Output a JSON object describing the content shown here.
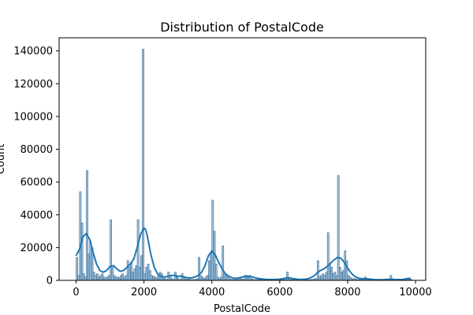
{
  "chart_data": {
    "type": "bar",
    "title": "Distribution of PostalCode",
    "xlabel": "PostalCode",
    "ylabel": "Count",
    "xlim": [
      -500,
      10300
    ],
    "ylim": [
      0,
      148000
    ],
    "x_ticks": [
      0,
      2000,
      4000,
      6000,
      8000,
      10000
    ],
    "x_tick_labels": [
      "0",
      "2000",
      "4000",
      "6000",
      "8000",
      "10000"
    ],
    "y_ticks": [
      0,
      20000,
      40000,
      60000,
      80000,
      100000,
      120000,
      140000
    ],
    "y_tick_labels": [
      "0",
      "20000",
      "40000",
      "60000",
      "80000",
      "100000",
      "120000",
      "140000"
    ],
    "grid": false,
    "legend": "none",
    "bin_width": 50,
    "bar_color": "#5b9bc8",
    "bar_edge_color": "#1f4e79",
    "kde_color": "#1f77b4",
    "histogram": [
      [
        0,
        14000
      ],
      [
        50,
        3000
      ],
      [
        100,
        54000
      ],
      [
        150,
        35000
      ],
      [
        200,
        4000
      ],
      [
        250,
        2000
      ],
      [
        300,
        67000
      ],
      [
        350,
        16000
      ],
      [
        400,
        24000
      ],
      [
        450,
        20000
      ],
      [
        500,
        5000
      ],
      [
        550,
        3000
      ],
      [
        600,
        4000
      ],
      [
        650,
        2000
      ],
      [
        700,
        3000
      ],
      [
        750,
        4000
      ],
      [
        800,
        2000
      ],
      [
        850,
        1500
      ],
      [
        900,
        2000
      ],
      [
        950,
        3000
      ],
      [
        1000,
        37000
      ],
      [
        1050,
        8000
      ],
      [
        1100,
        3000
      ],
      [
        1150,
        2000
      ],
      [
        1200,
        2000
      ],
      [
        1250,
        1500
      ],
      [
        1300,
        3000
      ],
      [
        1350,
        4000
      ],
      [
        1400,
        2000
      ],
      [
        1450,
        3000
      ],
      [
        1500,
        12000
      ],
      [
        1550,
        8000
      ],
      [
        1600,
        11000
      ],
      [
        1650,
        5000
      ],
      [
        1700,
        7000
      ],
      [
        1750,
        9000
      ],
      [
        1800,
        37000
      ],
      [
        1850,
        8000
      ],
      [
        1900,
        15000
      ],
      [
        1950,
        141000
      ],
      [
        2000,
        4000
      ],
      [
        2050,
        8000
      ],
      [
        2100,
        10000
      ],
      [
        2150,
        6000
      ],
      [
        2200,
        3000
      ],
      [
        2250,
        2500
      ],
      [
        2300,
        2000
      ],
      [
        2350,
        1500
      ],
      [
        2400,
        3000
      ],
      [
        2450,
        5000
      ],
      [
        2500,
        4000
      ],
      [
        2550,
        2000
      ],
      [
        2600,
        1000
      ],
      [
        2650,
        500
      ],
      [
        2700,
        5000
      ],
      [
        2750,
        3000
      ],
      [
        2800,
        1000
      ],
      [
        2850,
        500
      ],
      [
        2900,
        5000
      ],
      [
        2950,
        2000
      ],
      [
        3000,
        1000
      ],
      [
        3050,
        500
      ],
      [
        3100,
        4000
      ],
      [
        3150,
        2000
      ],
      [
        3200,
        1000
      ],
      [
        3250,
        500
      ],
      [
        3300,
        1000
      ],
      [
        3350,
        500
      ],
      [
        3400,
        500
      ],
      [
        3450,
        500
      ],
      [
        3500,
        500
      ],
      [
        3550,
        1000
      ],
      [
        3600,
        14000
      ],
      [
        3650,
        3000
      ],
      [
        3700,
        2000
      ],
      [
        3750,
        1000
      ],
      [
        3800,
        2000
      ],
      [
        3850,
        3000
      ],
      [
        3900,
        12000
      ],
      [
        3950,
        17000
      ],
      [
        4000,
        49000
      ],
      [
        4050,
        30000
      ],
      [
        4100,
        10000
      ],
      [
        4150,
        2000
      ],
      [
        4200,
        1000
      ],
      [
        4250,
        2000
      ],
      [
        4300,
        21000
      ],
      [
        4350,
        4000
      ],
      [
        4400,
        3000
      ],
      [
        4450,
        2000
      ],
      [
        4500,
        1000
      ],
      [
        4550,
        500
      ],
      [
        4600,
        500
      ],
      [
        4650,
        500
      ],
      [
        4700,
        500
      ],
      [
        4750,
        1000
      ],
      [
        4800,
        2000
      ],
      [
        4850,
        1000
      ],
      [
        4900,
        500
      ],
      [
        4950,
        3000
      ],
      [
        5000,
        3000
      ],
      [
        5050,
        2000
      ],
      [
        5100,
        3000
      ],
      [
        5150,
        1000
      ],
      [
        5200,
        500
      ],
      [
        5250,
        500
      ],
      [
        5300,
        500
      ],
      [
        5350,
        500
      ],
      [
        5400,
        500
      ],
      [
        5450,
        500
      ],
      [
        5500,
        300
      ],
      [
        5550,
        300
      ],
      [
        5600,
        300
      ],
      [
        5650,
        300
      ],
      [
        5700,
        300
      ],
      [
        5750,
        300
      ],
      [
        5800,
        300
      ],
      [
        5850,
        300
      ],
      [
        5900,
        300
      ],
      [
        5950,
        300
      ],
      [
        6000,
        500
      ],
      [
        6050,
        500
      ],
      [
        6100,
        1000
      ],
      [
        6150,
        1000
      ],
      [
        6200,
        5000
      ],
      [
        6250,
        1000
      ],
      [
        6300,
        500
      ],
      [
        6350,
        500
      ],
      [
        6400,
        500
      ],
      [
        6450,
        500
      ],
      [
        6500,
        300
      ],
      [
        6550,
        300
      ],
      [
        6600,
        300
      ],
      [
        6650,
        300
      ],
      [
        6700,
        300
      ],
      [
        6750,
        300
      ],
      [
        6800,
        300
      ],
      [
        6850,
        300
      ],
      [
        6900,
        500
      ],
      [
        6950,
        500
      ],
      [
        7000,
        1000
      ],
      [
        7050,
        1000
      ],
      [
        7100,
        12000
      ],
      [
        7150,
        2000
      ],
      [
        7200,
        3000
      ],
      [
        7250,
        4000
      ],
      [
        7300,
        3000
      ],
      [
        7350,
        5000
      ],
      [
        7400,
        29000
      ],
      [
        7450,
        10000
      ],
      [
        7500,
        8000
      ],
      [
        7550,
        4000
      ],
      [
        7600,
        5000
      ],
      [
        7650,
        3000
      ],
      [
        7700,
        64000
      ],
      [
        7750,
        8000
      ],
      [
        7800,
        5000
      ],
      [
        7850,
        6000
      ],
      [
        7900,
        18000
      ],
      [
        7950,
        12000
      ],
      [
        8000,
        3000
      ],
      [
        8050,
        2000
      ],
      [
        8100,
        1000
      ],
      [
        8150,
        1000
      ],
      [
        8200,
        1000
      ],
      [
        8250,
        500
      ],
      [
        8300,
        500
      ],
      [
        8350,
        500
      ],
      [
        8400,
        500
      ],
      [
        8450,
        1000
      ],
      [
        8500,
        2000
      ],
      [
        8550,
        500
      ],
      [
        8600,
        300
      ],
      [
        8650,
        300
      ],
      [
        8700,
        300
      ],
      [
        8750,
        300
      ],
      [
        8800,
        300
      ],
      [
        8850,
        300
      ],
      [
        8900,
        300
      ],
      [
        8950,
        300
      ],
      [
        9000,
        300
      ],
      [
        9050,
        300
      ],
      [
        9100,
        300
      ],
      [
        9150,
        300
      ],
      [
        9200,
        300
      ],
      [
        9250,
        3000
      ],
      [
        9300,
        500
      ],
      [
        9350,
        300
      ],
      [
        9400,
        300
      ],
      [
        9450,
        300
      ],
      [
        9500,
        300
      ],
      [
        9550,
        300
      ],
      [
        9600,
        300
      ],
      [
        9650,
        500
      ],
      [
        9700,
        1000
      ],
      [
        9750,
        1500
      ],
      [
        9800,
        1500
      ],
      [
        9850,
        500
      ]
    ],
    "kde": [
      [
        0,
        15000
      ],
      [
        100,
        19000
      ],
      [
        200,
        26500
      ],
      [
        300,
        28500
      ],
      [
        400,
        25000
      ],
      [
        500,
        17000
      ],
      [
        600,
        10000
      ],
      [
        700,
        6000
      ],
      [
        800,
        5000
      ],
      [
        900,
        6000
      ],
      [
        1000,
        8500
      ],
      [
        1100,
        9000
      ],
      [
        1200,
        7000
      ],
      [
        1300,
        5500
      ],
      [
        1400,
        6000
      ],
      [
        1500,
        8000
      ],
      [
        1600,
        10000
      ],
      [
        1700,
        13000
      ],
      [
        1800,
        20000
      ],
      [
        1900,
        28000
      ],
      [
        2000,
        32000
      ],
      [
        2050,
        31000
      ],
      [
        2100,
        27000
      ],
      [
        2200,
        16000
      ],
      [
        2300,
        8000
      ],
      [
        2400,
        4000
      ],
      [
        2500,
        2500
      ],
      [
        2600,
        2000
      ],
      [
        2700,
        2500
      ],
      [
        2800,
        3000
      ],
      [
        2900,
        3000
      ],
      [
        3000,
        2500
      ],
      [
        3100,
        2500
      ],
      [
        3200,
        2000
      ],
      [
        3300,
        1500
      ],
      [
        3400,
        1500
      ],
      [
        3500,
        2000
      ],
      [
        3600,
        3000
      ],
      [
        3700,
        5000
      ],
      [
        3800,
        9000
      ],
      [
        3900,
        15000
      ],
      [
        4000,
        18000
      ],
      [
        4100,
        15500
      ],
      [
        4200,
        11000
      ],
      [
        4300,
        7000
      ],
      [
        4400,
        4000
      ],
      [
        4500,
        2500
      ],
      [
        4600,
        1500
      ],
      [
        4700,
        1200
      ],
      [
        4800,
        1500
      ],
      [
        4900,
        2000
      ],
      [
        5000,
        2500
      ],
      [
        5100,
        2500
      ],
      [
        5200,
        2000
      ],
      [
        5300,
        1500
      ],
      [
        5400,
        1000
      ],
      [
        5600,
        600
      ],
      [
        5800,
        500
      ],
      [
        6000,
        700
      ],
      [
        6100,
        1000
      ],
      [
        6200,
        1500
      ],
      [
        6300,
        1500
      ],
      [
        6400,
        1000
      ],
      [
        6600,
        500
      ],
      [
        6800,
        800
      ],
      [
        6900,
        1500
      ],
      [
        7000,
        2500
      ],
      [
        7100,
        4500
      ],
      [
        7200,
        6000
      ],
      [
        7300,
        7000
      ],
      [
        7400,
        8500
      ],
      [
        7500,
        10500
      ],
      [
        7600,
        12500
      ],
      [
        7700,
        14000
      ],
      [
        7800,
        13500
      ],
      [
        7900,
        11000
      ],
      [
        8000,
        7500
      ],
      [
        8100,
        4500
      ],
      [
        8200,
        2500
      ],
      [
        8300,
        1500
      ],
      [
        8400,
        1000
      ],
      [
        8500,
        1000
      ],
      [
        8600,
        800
      ],
      [
        8800,
        500
      ],
      [
        9000,
        400
      ],
      [
        9200,
        600
      ],
      [
        9300,
        700
      ],
      [
        9400,
        500
      ],
      [
        9600,
        500
      ],
      [
        9700,
        800
      ],
      [
        9800,
        1000
      ],
      [
        9850,
        800
      ]
    ]
  }
}
